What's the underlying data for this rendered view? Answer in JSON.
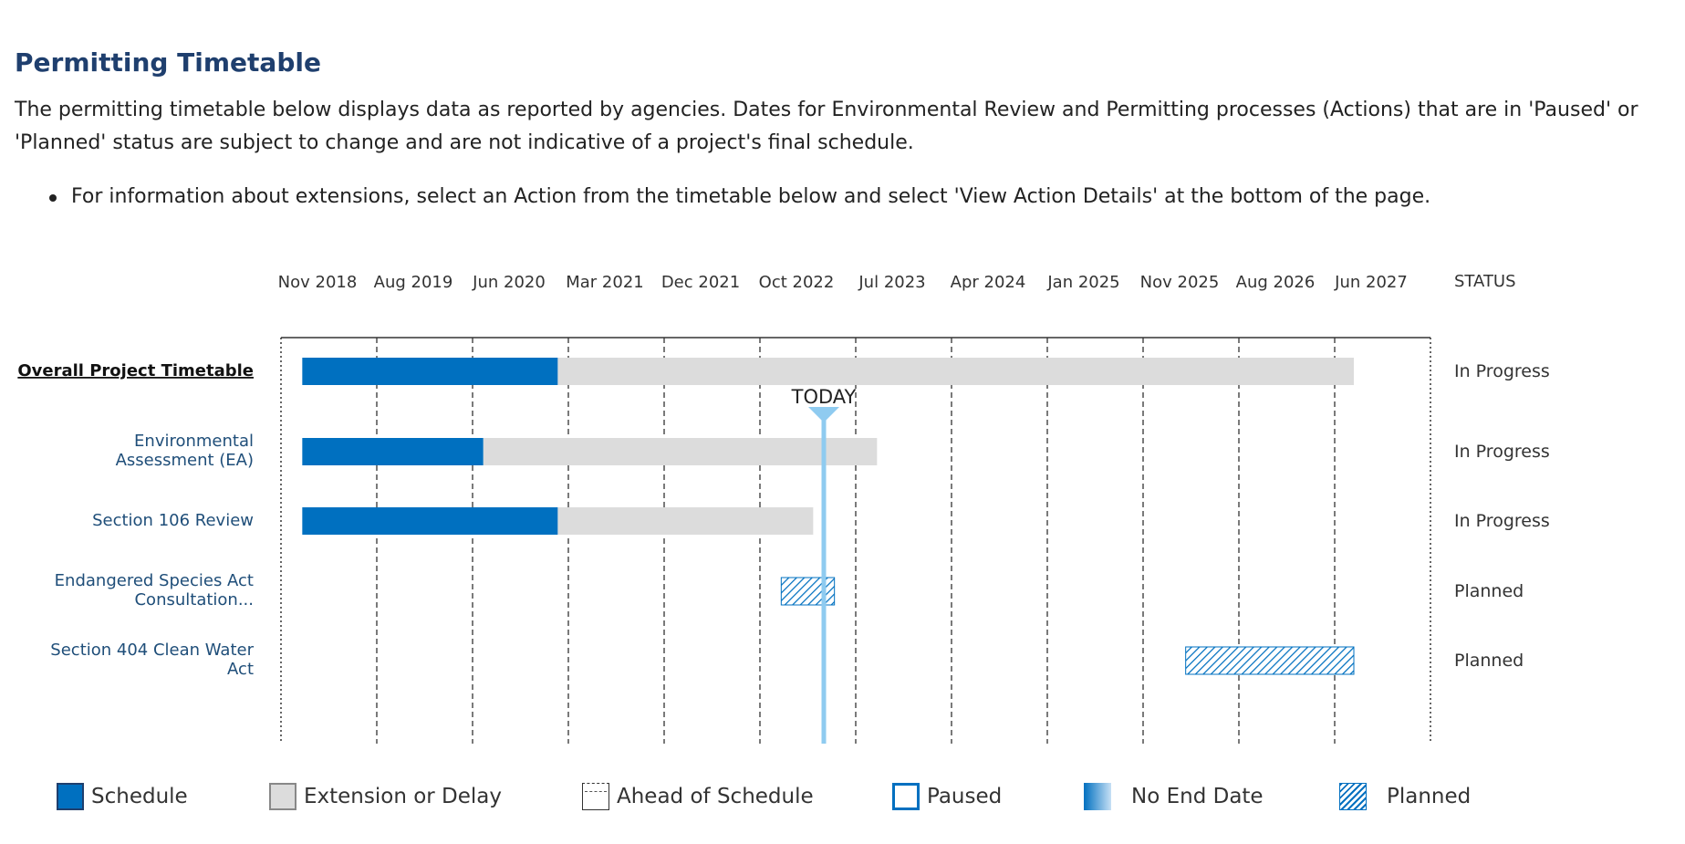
{
  "header": {
    "title": "Permitting Timetable",
    "intro": "The permitting timetable below displays data as reported by agencies. Dates for Environmental Review and Permitting processes (Actions) that are in 'Paused' or 'Planned' status are subject to change and are not indicative of a project's final schedule.",
    "bullet": "For information about extensions, select an Action from the timetable below and select 'View Action Details' at the bottom of the page."
  },
  "colors": {
    "schedule": "#0070c0",
    "extension": "#dcdcdc",
    "today": "#8fcbf0",
    "label_link": "#1f4e79",
    "title": "#1f3f6e"
  },
  "chart_data": {
    "type": "gantt",
    "x_ticks": [
      "Nov 2018",
      "Aug 2019",
      "Jun 2020",
      "Mar 2021",
      "Dec 2021",
      "Oct 2022",
      "Jul 2023",
      "Apr 2024",
      "Jan 2025",
      "Nov 2025",
      "Aug 2026",
      "Jun 2027"
    ],
    "status_header": "STATUS",
    "today_label": "TODAY",
    "today": "2023-04",
    "rows": [
      {
        "label": "Overall Project Timetable",
        "emphasis": true,
        "status": "In Progress",
        "schedule": [
          "2019-01",
          "2021-02"
        ],
        "extension": [
          "2021-02",
          "2027-08"
        ]
      },
      {
        "label": "Environmental Assessment (EA)",
        "status": "In Progress",
        "schedule": [
          "2019-01",
          "2020-07"
        ],
        "extension": [
          "2020-07",
          "2023-09"
        ]
      },
      {
        "label": "Section 106 Review",
        "status": "In Progress",
        "schedule": [
          "2019-01",
          "2021-02"
        ],
        "extension": [
          "2021-02",
          "2023-03"
        ]
      },
      {
        "label": "Endangered Species Act Consultation...",
        "status": "Planned",
        "planned": [
          "2022-12",
          "2023-05"
        ]
      },
      {
        "label": "Section 404 Clean Water Act",
        "status": "Planned",
        "planned": [
          "2026-03",
          "2027-08"
        ]
      }
    ],
    "legend": [
      "Schedule",
      "Extension or Delay",
      "Ahead of Schedule",
      "Paused",
      "No End Date",
      "Planned"
    ]
  }
}
